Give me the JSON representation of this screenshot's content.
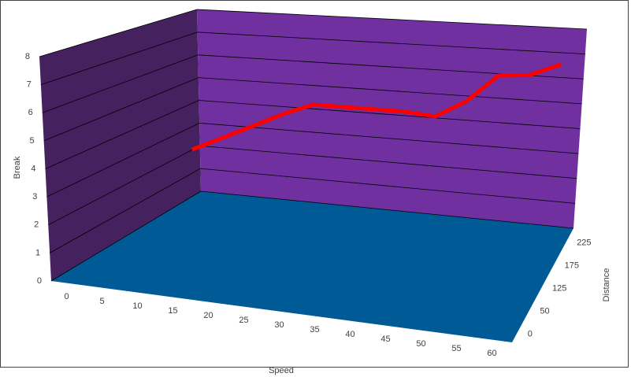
{
  "chart_data": {
    "type": "line",
    "x_title": "Speed",
    "y_title": "Break",
    "z_title": "Distance",
    "categories": [
      "0",
      "5",
      "10",
      "15",
      "20",
      "25",
      "30",
      "35",
      "40",
      "45",
      "50",
      "55",
      "60"
    ],
    "z_categories": [
      "0",
      "50",
      "125",
      "175",
      "225"
    ],
    "series": [
      {
        "color": "#ff0000",
        "values": [
          2.4,
          3.0,
          3.6,
          4.2,
          4.7,
          4.7,
          4.7,
          4.7,
          4.6,
          5.3,
          6.4,
          6.5,
          7.0
        ]
      }
    ],
    "ylim": [
      0,
      8
    ],
    "yticks": [
      0,
      1,
      2,
      3,
      4,
      5,
      6,
      7,
      8
    ],
    "grid": true,
    "wall_color": "#7030a0",
    "side_wall_color": "#46215f",
    "floor_color": "#005a96"
  }
}
